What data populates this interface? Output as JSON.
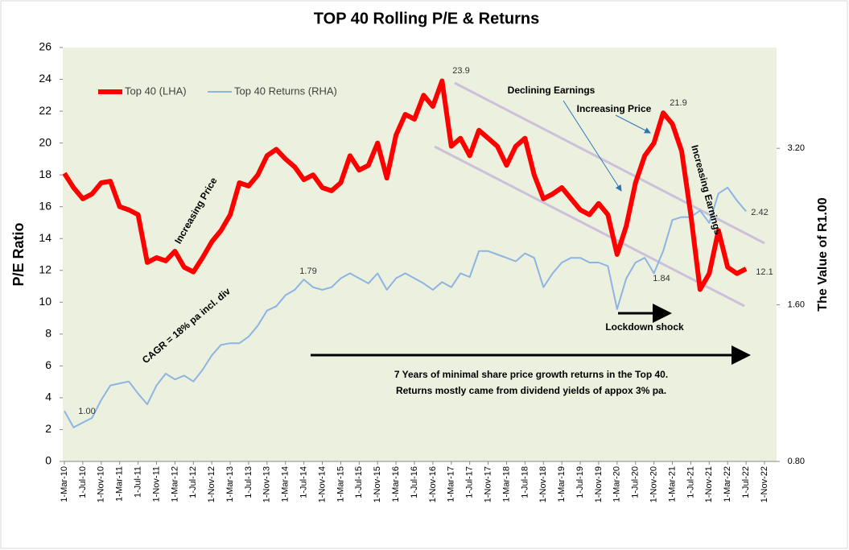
{
  "chart_data": {
    "type": "line",
    "title": "TOP 40 Rolling P/E & Returns",
    "y_label": "P/E Ratio",
    "y2_label": "The Value of R1.00",
    "categories": [
      "1-Mar-10",
      null,
      "1-Jul-10",
      null,
      "1-Nov-10",
      null,
      "1-Mar-11",
      null,
      "1-Jul-11",
      null,
      "1-Nov-11",
      null,
      "1-Mar-12",
      null,
      "1-Jul-12",
      null,
      "1-Nov-12",
      null,
      "1-Mar-13",
      null,
      "1-Jul-13",
      null,
      "1-Nov-13",
      null,
      "1-Mar-14",
      null,
      "1-Jul-14",
      null,
      "1-Nov-14",
      null,
      "1-Mar-15",
      null,
      "1-Jul-15",
      null,
      "1-Nov-15",
      null,
      "1-Mar-16",
      null,
      "1-Jul-16",
      null,
      "1-Nov-16",
      null,
      "1-Mar-17",
      null,
      "1-Jul-17",
      null,
      "1-Nov-17",
      null,
      "1-Mar-18",
      null,
      "1-Jul-18",
      null,
      "1-Nov-18",
      null,
      "1-Mar-19",
      null,
      "1-Jul-19",
      null,
      "1-Nov-19",
      null,
      "1-Mar-20",
      null,
      "1-Jul-20",
      null,
      "1-Nov-20",
      null,
      "1-Mar-21",
      null,
      "1-Jul-21",
      null,
      "1-Nov-21",
      null,
      "1-Mar-22",
      null,
      "1-Jul-22",
      null,
      "1-Nov-22"
    ],
    "series": [
      {
        "name": "Top 40 (LHA)",
        "color": "#ff0000",
        "axis": "y",
        "values": [
          18.1,
          17.2,
          16.5,
          16.8,
          17.5,
          17.6,
          16.0,
          15.8,
          15.5,
          12.5,
          12.8,
          12.6,
          13.2,
          12.2,
          11.9,
          12.8,
          13.8,
          14.5,
          15.5,
          17.5,
          17.3,
          18.0,
          19.2,
          19.6,
          19.0,
          18.5,
          17.7,
          18.0,
          17.2,
          17.0,
          17.5,
          19.2,
          18.3,
          18.6,
          20.0,
          17.8,
          20.5,
          21.8,
          21.5,
          23.0,
          22.3,
          23.9,
          19.8,
          20.3,
          19.2,
          20.8,
          20.3,
          19.8,
          18.6,
          19.8,
          20.3,
          18.0,
          16.5,
          16.8,
          17.2,
          16.5,
          15.8,
          15.5,
          16.2,
          15.5,
          13.0,
          14.8,
          17.5,
          19.2,
          20.0,
          21.9,
          21.2,
          19.5,
          15.5,
          10.8,
          11.8,
          14.5,
          12.2,
          11.8,
          12.1,
          null,
          null
        ]
      },
      {
        "name": "Top 40 Returns (RHA)",
        "color": "#8db4e2",
        "axis": "y2",
        "values": [
          1.0,
          0.93,
          0.95,
          0.97,
          1.05,
          1.12,
          1.13,
          1.14,
          1.08,
          1.03,
          1.12,
          1.18,
          1.15,
          1.17,
          1.14,
          1.2,
          1.28,
          1.34,
          1.35,
          1.35,
          1.39,
          1.46,
          1.56,
          1.59,
          1.67,
          1.71,
          1.79,
          1.73,
          1.71,
          1.73,
          1.8,
          1.84,
          1.8,
          1.76,
          1.84,
          1.71,
          1.8,
          1.84,
          1.8,
          1.76,
          1.71,
          1.77,
          1.73,
          1.84,
          1.81,
          2.03,
          2.03,
          2.0,
          1.97,
          1.94,
          2.01,
          1.97,
          1.73,
          1.84,
          1.93,
          1.97,
          1.97,
          1.93,
          1.93,
          1.9,
          1.57,
          1.8,
          1.93,
          1.97,
          1.84,
          2.03,
          2.33,
          2.36,
          2.36,
          2.43,
          2.3,
          2.62,
          2.69,
          2.54,
          2.42,
          null,
          null
        ]
      }
    ],
    "ylim": [
      0,
      26
    ],
    "yticks": [
      0,
      2,
      4,
      6,
      8,
      10,
      12,
      14,
      16,
      18,
      20,
      22,
      24,
      26
    ],
    "y2lim": [
      0.8,
      5.0
    ],
    "y2_log": true,
    "y2ticks": [
      {
        "value": 0.8,
        "label": "0.80"
      },
      {
        "value": 1.6,
        "label": "1.60"
      },
      {
        "value": 3.2,
        "label": "3.20"
      }
    ],
    "legend": "top-left",
    "annotations": [
      "23.9",
      "21.9",
      "12.1",
      "1.00",
      "1.79",
      "1.84",
      "2.42",
      "Declining Earnings",
      "Increasing Price",
      "Increasing Price",
      "Increasing Earnings",
      "Lockdown shock",
      "CAGR = 18% pa incl. div",
      "7 Years of minimal share price growth returns in the Top 40.",
      "Returns mostly came from dividend yields of appox 3% pa."
    ]
  }
}
